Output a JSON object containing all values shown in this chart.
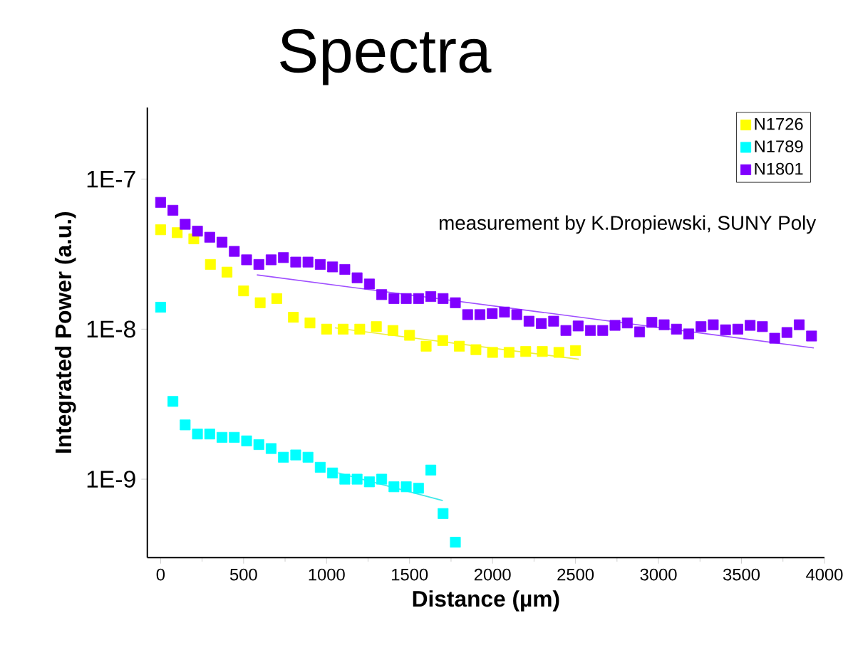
{
  "chart_data": {
    "type": "scatter",
    "title": "Spectra",
    "xlabel": "Distance (µm)",
    "ylabel": "Integrated Power (a.u.)",
    "annotations": [
      "measurement by K.Dropiewski, SUNY Poly"
    ],
    "log": "y",
    "marker": "square",
    "legend": "top right",
    "xlim": [
      -80,
      4000
    ],
    "xticks": [
      0,
      500,
      1000,
      1500,
      2000,
      2500,
      3000,
      3500,
      4000
    ],
    "ylim": [
      3e-10,
      3e-07
    ],
    "yticks": [
      {
        "value": 1e-09,
        "label": "1E-9"
      },
      {
        "value": 1e-08,
        "label": "1E-8"
      },
      {
        "value": 1e-07,
        "label": "1E-7"
      }
    ],
    "series": [
      {
        "name": "N1726",
        "color": "#ffff00",
        "x": [
          0,
          100,
          200,
          300,
          400,
          500,
          600,
          700,
          800,
          900,
          1000,
          1100,
          1200,
          1300,
          1400,
          1500,
          1600,
          1700,
          1800,
          1900,
          2000,
          2100,
          2200,
          2300,
          2400,
          2500
        ],
        "values": [
          4.6e-08,
          4.4e-08,
          4e-08,
          2.7e-08,
          2.4e-08,
          1.8e-08,
          1.5e-08,
          1.6e-08,
          1.2e-08,
          1.1e-08,
          1e-08,
          1e-08,
          1e-08,
          1.04e-08,
          9.8e-09,
          9.1e-09,
          7.7e-09,
          8.4e-09,
          7.7e-09,
          7.3e-09,
          7e-09,
          7e-09,
          7.1e-09,
          7.1e-09,
          7e-09,
          7.2e-09
        ]
      },
      {
        "name": "N1789",
        "color": "#00ffff",
        "x": [
          0,
          74,
          148,
          222,
          296,
          370,
          444,
          518,
          592,
          666,
          740,
          814,
          888,
          962,
          1036,
          1110,
          1184,
          1258,
          1332,
          1406,
          1480,
          1554,
          1628,
          1702,
          1776
        ],
        "values": [
          1.4e-08,
          3.3e-09,
          2.3e-09,
          2e-09,
          2e-09,
          1.9e-09,
          1.9e-09,
          1.8e-09,
          1.7e-09,
          1.6e-09,
          1.4e-09,
          1.45e-09,
          1.4e-09,
          1.2e-09,
          1.1e-09,
          1e-09,
          1e-09,
          9.6e-10,
          1e-09,
          8.9e-10,
          8.9e-10,
          8.7e-10,
          1.15e-09,
          5.9e-10,
          3.8e-10
        ]
      },
      {
        "name": "N1801",
        "color": "#8000ff",
        "x": [
          0,
          74,
          148,
          222,
          296,
          370,
          444,
          518,
          592,
          666,
          740,
          814,
          888,
          962,
          1036,
          1110,
          1184,
          1258,
          1332,
          1406,
          1480,
          1554,
          1628,
          1702,
          1776,
          1850,
          1924,
          1998,
          2072,
          2146,
          2220,
          2294,
          2368,
          2442,
          2516,
          2590,
          2664,
          2738,
          2812,
          2886,
          2960,
          3034,
          3108,
          3182,
          3256,
          3330,
          3404,
          3478,
          3552,
          3626,
          3700,
          3774,
          3848,
          3922
        ],
        "values": [
          7e-08,
          6.2e-08,
          5e-08,
          4.5e-08,
          4.1e-08,
          3.8e-08,
          3.3e-08,
          2.9e-08,
          2.7e-08,
          2.9e-08,
          3e-08,
          2.8e-08,
          2.8e-08,
          2.7e-08,
          2.6e-08,
          2.5e-08,
          2.2e-08,
          2e-08,
          1.7e-08,
          1.6e-08,
          1.6e-08,
          1.6e-08,
          1.65e-08,
          1.6e-08,
          1.5e-08,
          1.25e-08,
          1.25e-08,
          1.27e-08,
          1.3e-08,
          1.25e-08,
          1.13e-08,
          1.09e-08,
          1.13e-08,
          9.8e-09,
          1.05e-08,
          9.8e-09,
          9.8e-09,
          1.06e-08,
          1.1e-08,
          9.6e-09,
          1.11e-08,
          1.07e-08,
          1e-08,
          9.3e-09,
          1.04e-08,
          1.07e-08,
          9.9e-09,
          1e-08,
          1.06e-08,
          1.04e-08,
          8.7e-09,
          9.5e-09,
          1.07e-08,
          9e-09
        ]
      },
      {
        "type": "line",
        "marker": "none",
        "color": "#ecec40",
        "x": [
          1050,
          2520
        ],
        "values": [
          1.02e-08,
          6.3e-09
        ]
      },
      {
        "type": "line",
        "marker": "none",
        "color": "#40e8e8",
        "x": [
          1070,
          1700
        ],
        "values": [
          1.1e-09,
          7.2e-10
        ]
      },
      {
        "type": "line",
        "marker": "none",
        "color": "#a050ff",
        "x": [
          580,
          3936
        ],
        "values": [
          2.3e-08,
          7.5e-09
        ]
      }
    ]
  }
}
